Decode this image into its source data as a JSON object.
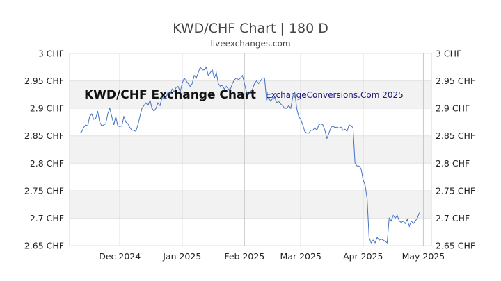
{
  "chart_data": {
    "type": "line",
    "title": "KWD/CHF Chart | 180 D",
    "subtitle": "liveexchanges.com",
    "watermark_left": "KWD/CHF Exchange Chart",
    "watermark_right": "ExchangeConversions.Com 2025",
    "ylim": [
      2.65,
      3.0
    ],
    "yticks": [
      {
        "value": 3.0,
        "label": "3 CHF"
      },
      {
        "value": 2.95,
        "label": "2.95 CHF"
      },
      {
        "value": 2.9,
        "label": "2.9 CHF"
      },
      {
        "value": 2.85,
        "label": "2.85 CHF"
      },
      {
        "value": 2.8,
        "label": "2.8 CHF"
      },
      {
        "value": 2.75,
        "label": "2.75 CHF"
      },
      {
        "value": 2.7,
        "label": "2.7 CHF"
      },
      {
        "value": 2.65,
        "label": "2.65 CHF"
      }
    ],
    "x_range": [
      0,
      180
    ],
    "xticks": [
      {
        "day": 25,
        "label": "Dec 2024"
      },
      {
        "day": 56,
        "label": "Jan 2025"
      },
      {
        "day": 87,
        "label": "Feb 2025"
      },
      {
        "day": 115,
        "label": "Mar 2025"
      },
      {
        "day": 146,
        "label": "Apr 2025"
      },
      {
        "day": 176,
        "label": "May 2025"
      }
    ],
    "grid": true,
    "line_color": "#4472c4",
    "band_color": "#f2f2f2",
    "series": [
      {
        "values": [
          [
            5,
            2.855
          ],
          [
            6,
            2.857
          ],
          [
            7,
            2.865
          ],
          [
            8,
            2.87
          ],
          [
            9,
            2.868
          ],
          [
            10,
            2.885
          ],
          [
            11,
            2.89
          ],
          [
            12,
            2.88
          ],
          [
            13,
            2.882
          ],
          [
            14,
            2.895
          ],
          [
            15,
            2.875
          ],
          [
            16,
            2.868
          ],
          [
            17,
            2.87
          ],
          [
            18,
            2.872
          ],
          [
            19,
            2.89
          ],
          [
            20,
            2.9
          ],
          [
            21,
            2.885
          ],
          [
            22,
            2.87
          ],
          [
            23,
            2.885
          ],
          [
            24,
            2.868
          ],
          [
            25,
            2.867
          ],
          [
            26,
            2.868
          ],
          [
            27,
            2.885
          ],
          [
            28,
            2.875
          ],
          [
            29,
            2.872
          ],
          [
            30,
            2.865
          ],
          [
            31,
            2.86
          ],
          [
            32,
            2.86
          ],
          [
            33,
            2.858
          ],
          [
            34,
            2.87
          ],
          [
            35,
            2.885
          ],
          [
            36,
            2.9
          ],
          [
            37,
            2.905
          ],
          [
            38,
            2.91
          ],
          [
            39,
            2.905
          ],
          [
            40,
            2.915
          ],
          [
            41,
            2.9
          ],
          [
            42,
            2.895
          ],
          [
            43,
            2.9
          ],
          [
            44,
            2.91
          ],
          [
            45,
            2.905
          ],
          [
            46,
            2.92
          ],
          [
            47,
            2.918
          ],
          [
            48,
            2.92
          ],
          [
            49,
            2.93
          ],
          [
            50,
            2.925
          ],
          [
            51,
            2.935
          ],
          [
            52,
            2.93
          ],
          [
            53,
            2.938
          ],
          [
            54,
            2.94
          ],
          [
            55,
            2.93
          ],
          [
            56,
            2.945
          ],
          [
            57,
            2.955
          ],
          [
            58,
            2.95
          ],
          [
            59,
            2.945
          ],
          [
            60,
            2.94
          ],
          [
            61,
            2.945
          ],
          [
            62,
            2.96
          ],
          [
            63,
            2.955
          ],
          [
            64,
            2.965
          ],
          [
            65,
            2.975
          ],
          [
            66,
            2.97
          ],
          [
            67,
            2.97
          ],
          [
            68,
            2.975
          ],
          [
            69,
            2.96
          ],
          [
            70,
            2.965
          ],
          [
            71,
            2.97
          ],
          [
            72,
            2.955
          ],
          [
            73,
            2.965
          ],
          [
            74,
            2.945
          ],
          [
            75,
            2.94
          ],
          [
            76,
            2.942
          ],
          [
            77,
            2.935
          ],
          [
            78,
            2.94
          ],
          [
            79,
            2.935
          ],
          [
            80,
            2.935
          ],
          [
            81,
            2.945
          ],
          [
            82,
            2.952
          ],
          [
            83,
            2.955
          ],
          [
            84,
            2.952
          ],
          [
            85,
            2.955
          ],
          [
            86,
            2.96
          ],
          [
            87,
            2.945
          ],
          [
            88,
            2.93
          ],
          [
            89,
            2.925
          ],
          [
            90,
            2.93
          ],
          [
            91,
            2.935
          ],
          [
            92,
            2.945
          ],
          [
            93,
            2.95
          ],
          [
            94,
            2.945
          ],
          [
            95,
            2.95
          ],
          [
            96,
            2.955
          ],
          [
            97,
            2.955
          ],
          [
            98,
            2.915
          ],
          [
            99,
            2.92
          ],
          [
            100,
            2.913
          ],
          [
            101,
            2.918
          ],
          [
            102,
            2.92
          ],
          [
            103,
            2.91
          ],
          [
            104,
            2.913
          ],
          [
            105,
            2.908
          ],
          [
            106,
            2.905
          ],
          [
            107,
            2.9
          ],
          [
            108,
            2.9
          ],
          [
            109,
            2.905
          ],
          [
            110,
            2.9
          ],
          [
            111,
            2.92
          ],
          [
            112,
            2.93
          ],
          [
            113,
            2.9
          ],
          [
            114,
            2.885
          ],
          [
            115,
            2.88
          ],
          [
            116,
            2.87
          ],
          [
            117,
            2.858
          ],
          [
            118,
            2.855
          ],
          [
            119,
            2.855
          ],
          [
            120,
            2.86
          ],
          [
            121,
            2.86
          ],
          [
            122,
            2.865
          ],
          [
            123,
            2.86
          ],
          [
            124,
            2.87
          ],
          [
            125,
            2.872
          ],
          [
            126,
            2.87
          ],
          [
            127,
            2.86
          ],
          [
            128,
            2.845
          ],
          [
            129,
            2.855
          ],
          [
            130,
            2.865
          ],
          [
            131,
            2.868
          ],
          [
            132,
            2.865
          ],
          [
            133,
            2.866
          ],
          [
            134,
            2.864
          ],
          [
            135,
            2.866
          ],
          [
            136,
            2.86
          ],
          [
            137,
            2.862
          ],
          [
            138,
            2.858
          ],
          [
            139,
            2.87
          ],
          [
            140,
            2.868
          ],
          [
            141,
            2.865
          ],
          [
            142,
            2.8
          ],
          [
            143,
            2.795
          ],
          [
            144,
            2.795
          ],
          [
            145,
            2.79
          ],
          [
            146,
            2.77
          ],
          [
            147,
            2.76
          ],
          [
            148,
            2.735
          ],
          [
            149,
            2.665
          ],
          [
            150,
            2.655
          ],
          [
            151,
            2.66
          ],
          [
            152,
            2.655
          ],
          [
            153,
            2.665
          ],
          [
            154,
            2.66
          ],
          [
            155,
            2.662
          ],
          [
            156,
            2.66
          ],
          [
            157,
            2.658
          ],
          [
            158,
            2.655
          ],
          [
            159,
            2.7
          ],
          [
            160,
            2.695
          ],
          [
            161,
            2.705
          ],
          [
            162,
            2.7
          ],
          [
            163,
            2.705
          ],
          [
            164,
            2.695
          ],
          [
            165,
            2.692
          ],
          [
            166,
            2.695
          ],
          [
            167,
            2.69
          ],
          [
            168,
            2.698
          ],
          [
            169,
            2.685
          ],
          [
            170,
            2.695
          ],
          [
            171,
            2.69
          ],
          [
            172,
            2.695
          ],
          [
            173,
            2.7
          ],
          [
            174,
            2.71
          ]
        ]
      }
    ]
  }
}
